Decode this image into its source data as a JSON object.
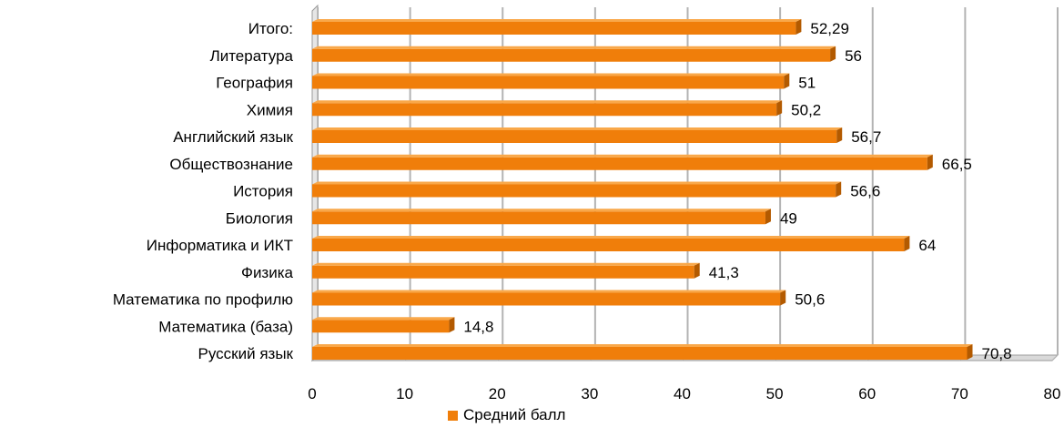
{
  "chart_data": {
    "type": "bar",
    "orientation": "horizontal",
    "categories": [
      "Итого:",
      "Литература",
      "География",
      "Химия",
      "Английский язык",
      "Обществознание",
      "История",
      "Биология",
      "Информатика и ИКТ",
      "Физика",
      "Математика  по профилю",
      "Математика (база)",
      "Русский язык"
    ],
    "series": [
      {
        "name": "Средний балл",
        "values": [
          52.29,
          56,
          51,
          50.2,
          56.7,
          66.5,
          56.6,
          49,
          64,
          41.3,
          50.6,
          14.8,
          70.8
        ],
        "labels": [
          "52,29",
          "56",
          "51",
          "50,2",
          "56,7",
          "66,5",
          "56,6",
          "49",
          "64",
          "41,3",
          "50,6",
          "14,8",
          "70,8"
        ],
        "color": "#f07e0a"
      }
    ],
    "xlim": [
      0,
      80
    ],
    "xticks": [
      0,
      10,
      20,
      30,
      40,
      50,
      60,
      70,
      80
    ],
    "grid": "vertical",
    "legend_position": "bottom",
    "title": "",
    "xlabel": "",
    "ylabel": ""
  },
  "colors": {
    "bar": "#f07e0a",
    "bar_shadow": "#b35a00",
    "bar_top": "#f9a84a",
    "grid": "#b3b3b3",
    "wall": "#9a9a9a",
    "floor": "#d9d9d9"
  }
}
